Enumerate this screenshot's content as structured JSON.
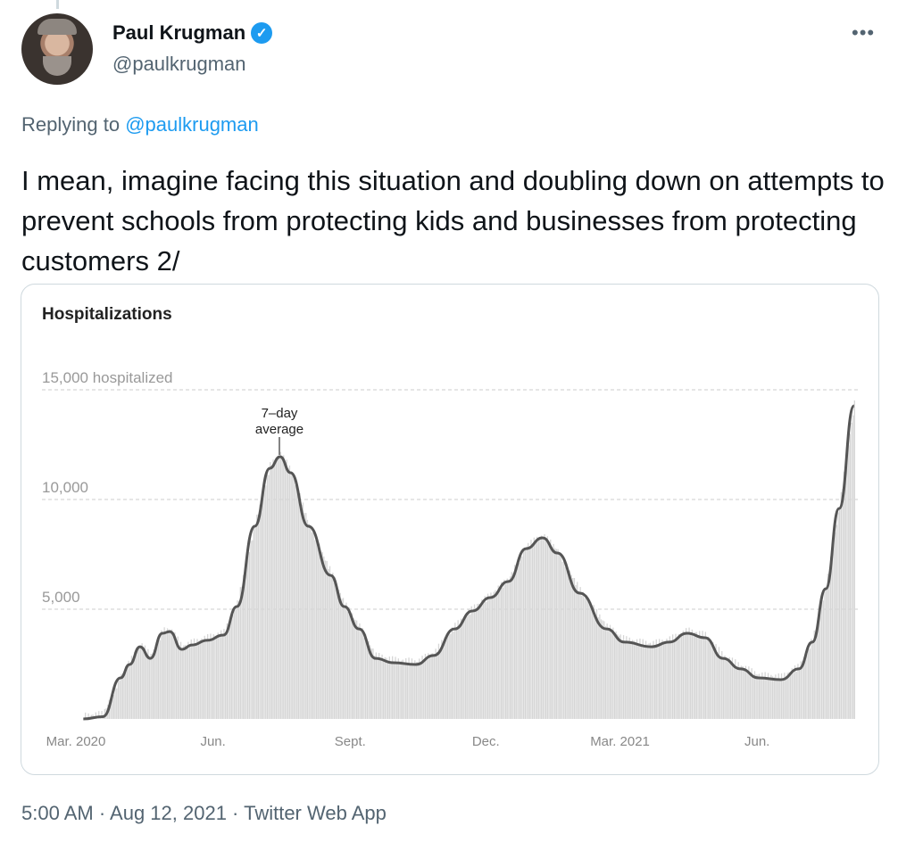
{
  "tweet": {
    "author_name": "Paul Krugman",
    "author_handle": "@paulkrugman",
    "verified": true,
    "replying_label": "Replying to",
    "replying_handle": "@paulkrugman",
    "text": "I mean, imagine facing this situation and doubling down on attempts to prevent schools from protecting kids and businesses from protecting customers 2/",
    "footer": "5:00 AM · Aug 12, 2021 · Twitter Web App",
    "more_icon": "more-horizontal-icon",
    "accent": "#1d9bf0"
  },
  "chart_data": {
    "type": "bar",
    "title": "Hospitalizations",
    "ylim": [
      0,
      15000
    ],
    "yticks": [
      {
        "value": 15000,
        "label": "15,000 hospitalized"
      },
      {
        "value": 10000,
        "label": "10,000"
      },
      {
        "value": 5000,
        "label": "5,000"
      }
    ],
    "xticks": [
      {
        "date": "2020-03-01",
        "label": "Mar. 2020"
      },
      {
        "date": "2020-06-01",
        "label": "Jun."
      },
      {
        "date": "2020-09-01",
        "label": "Sept."
      },
      {
        "date": "2020-12-01",
        "label": "Dec."
      },
      {
        "date": "2021-03-01",
        "label": "Mar. 2021"
      },
      {
        "date": "2021-06-01",
        "label": "Jun."
      }
    ],
    "grid": true,
    "annotation": {
      "line1": "7–day",
      "line2": "average",
      "date": "2020-07-16"
    },
    "bar_color": "#d6d6d6",
    "line_color": "#555555",
    "average_series": [
      [
        "2020-03-06",
        0
      ],
      [
        "2020-03-19",
        100
      ],
      [
        "2020-03-31",
        1870
      ],
      [
        "2020-04-06",
        2480
      ],
      [
        "2020-04-13",
        3290
      ],
      [
        "2020-04-20",
        2760
      ],
      [
        "2020-04-28",
        3900
      ],
      [
        "2020-05-03",
        3980
      ],
      [
        "2020-05-11",
        3170
      ],
      [
        "2020-05-18",
        3370
      ],
      [
        "2020-05-28",
        3580
      ],
      [
        "2020-06-08",
        3820
      ],
      [
        "2020-06-17",
        5120
      ],
      [
        "2020-06-29",
        8780
      ],
      [
        "2020-07-09",
        11420
      ],
      [
        "2020-07-16",
        11950
      ],
      [
        "2020-07-23",
        11220
      ],
      [
        "2020-08-04",
        8780
      ],
      [
        "2020-08-19",
        6540
      ],
      [
        "2020-08-28",
        5120
      ],
      [
        "2020-09-07",
        4100
      ],
      [
        "2020-09-18",
        2760
      ],
      [
        "2020-09-30",
        2560
      ],
      [
        "2020-10-15",
        2480
      ],
      [
        "2020-10-27",
        2890
      ],
      [
        "2020-11-10",
        4100
      ],
      [
        "2020-11-22",
        4920
      ],
      [
        "2020-12-04",
        5530
      ],
      [
        "2020-12-16",
        6260
      ],
      [
        "2020-12-28",
        7760
      ],
      [
        "2021-01-08",
        8250
      ],
      [
        "2021-01-18",
        7560
      ],
      [
        "2021-02-02",
        5730
      ],
      [
        "2021-02-20",
        4100
      ],
      [
        "2021-03-04",
        3500
      ],
      [
        "2021-03-22",
        3290
      ],
      [
        "2021-04-03",
        3500
      ],
      [
        "2021-04-15",
        3900
      ],
      [
        "2021-04-27",
        3700
      ],
      [
        "2021-05-09",
        2760
      ],
      [
        "2021-05-21",
        2280
      ],
      [
        "2021-06-02",
        1870
      ],
      [
        "2021-06-17",
        1790
      ],
      [
        "2021-06-29",
        2280
      ],
      [
        "2021-07-08",
        3500
      ],
      [
        "2021-07-17",
        5930
      ],
      [
        "2021-07-26",
        9590
      ],
      [
        "2021-08-05",
        14270
      ]
    ]
  }
}
